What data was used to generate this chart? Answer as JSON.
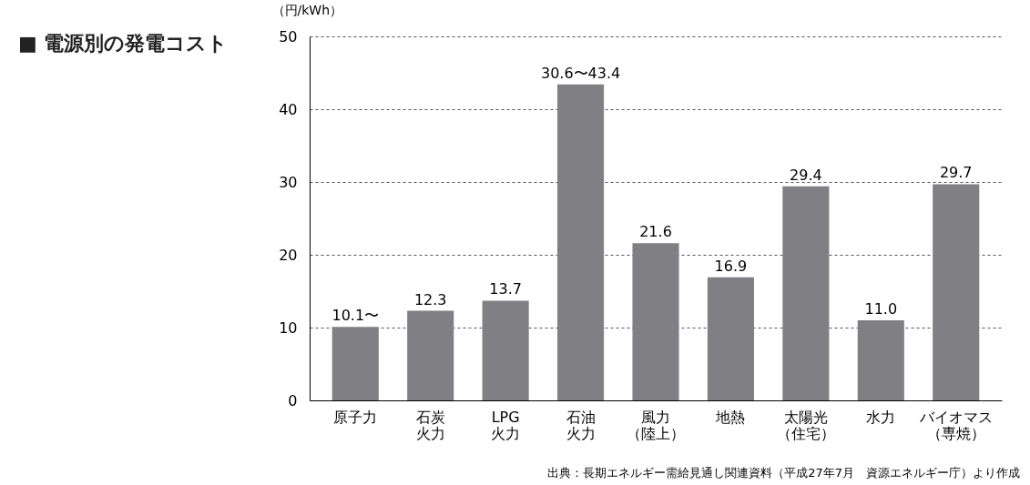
{
  "chart_data": {
    "type": "bar",
    "title": "■ 電源別の発電コスト",
    "ylabel": "（円/kWh）",
    "categories": [
      "原子力",
      "石炭火力",
      "LPG火力",
      "石油火力",
      "風力（陸上）",
      "地熱",
      "太陽光（住宅）",
      "水力",
      "バイオマス（専焼）"
    ],
    "values": [
      10.1,
      12.3,
      13.7,
      43.4,
      21.6,
      16.9,
      29.4,
      11.0,
      29.7
    ],
    "value_labels": [
      "10.1〜",
      "12.3",
      "13.7",
      "30.6〜43.4",
      "21.6",
      "16.9",
      "29.4",
      "11.0",
      "29.7"
    ],
    "color": "#807f83",
    "ylim": [
      0,
      50
    ],
    "yticks": [
      0,
      10,
      20,
      30,
      40,
      50
    ],
    "grid": "y",
    "line_style": "dashed",
    "annotations": [
      "出典：長期エネルギー需給見通し関連資料（平成27年7月　資源エネルギー庁）より作成"
    ]
  }
}
